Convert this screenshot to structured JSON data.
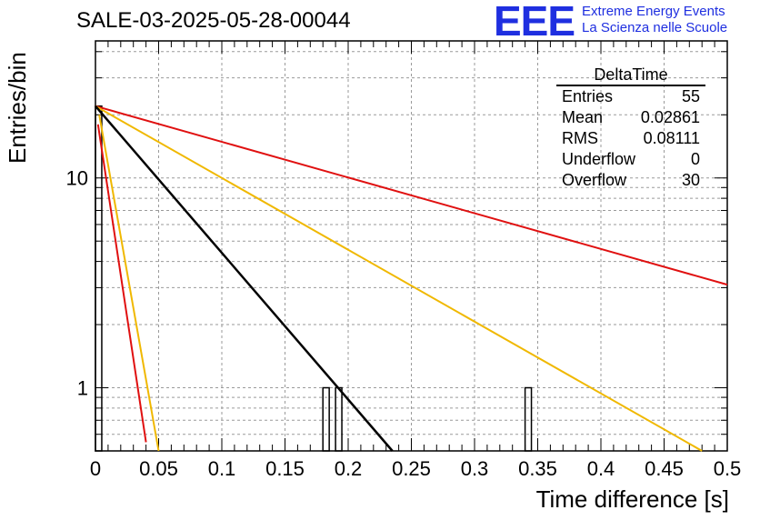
{
  "header": {
    "title": "SALE-03-2025-05-28-00044",
    "logo_mark": "EEE",
    "logo_line1": "Extreme Energy Events",
    "logo_line2": "La Scienza nelle Scuole"
  },
  "stats": {
    "name": "DeltaTime",
    "rows": [
      {
        "label": "Entries",
        "value": "55"
      },
      {
        "label": "Mean",
        "value": "0.02861"
      },
      {
        "label": "RMS",
        "value": "0.08111"
      },
      {
        "label": "Underflow",
        "value": "0"
      },
      {
        "label": "Overflow",
        "value": "30"
      }
    ]
  },
  "chart_data": {
    "type": "bar",
    "title": "SALE-03-2025-05-28-00044",
    "xlabel": "Time difference [s]",
    "ylabel": "Entries/bin",
    "xlim": [
      0,
      0.5
    ],
    "ylim": [
      0.5,
      45
    ],
    "yscale": "log",
    "grid": true,
    "xticks": [
      "0",
      "0.05",
      "0.1",
      "0.15",
      "0.2",
      "0.25",
      "0.3",
      "0.35",
      "0.4",
      "0.45",
      "0.5"
    ],
    "yticks": [
      {
        "value": 1,
        "label": "1"
      },
      {
        "value": 10,
        "label": "10"
      }
    ],
    "bin_width": 0.005,
    "histogram": [
      {
        "x0": 0.0,
        "x1": 0.005,
        "count": 22
      },
      {
        "x0": 0.18,
        "x1": 0.185,
        "count": 1
      },
      {
        "x0": 0.19,
        "x1": 0.195,
        "count": 1
      },
      {
        "x0": 0.34,
        "x1": 0.345,
        "count": 1
      }
    ],
    "fit_lines": [
      {
        "color": "#e01010",
        "x": [
          0.0,
          0.5
        ],
        "y": [
          22,
          3.1
        ]
      },
      {
        "color": "#f0b800",
        "x": [
          0.0,
          0.48
        ],
        "y": [
          22,
          0.5
        ]
      },
      {
        "color": "#000000",
        "x": [
          0.0,
          0.235
        ],
        "y": [
          22,
          0.5
        ]
      },
      {
        "color": "#e01010",
        "x": [
          0.002,
          0.04
        ],
        "y": [
          18,
          0.55
        ]
      },
      {
        "color": "#f0b800",
        "x": [
          0.003,
          0.05
        ],
        "y": [
          20,
          0.5
        ]
      }
    ]
  }
}
